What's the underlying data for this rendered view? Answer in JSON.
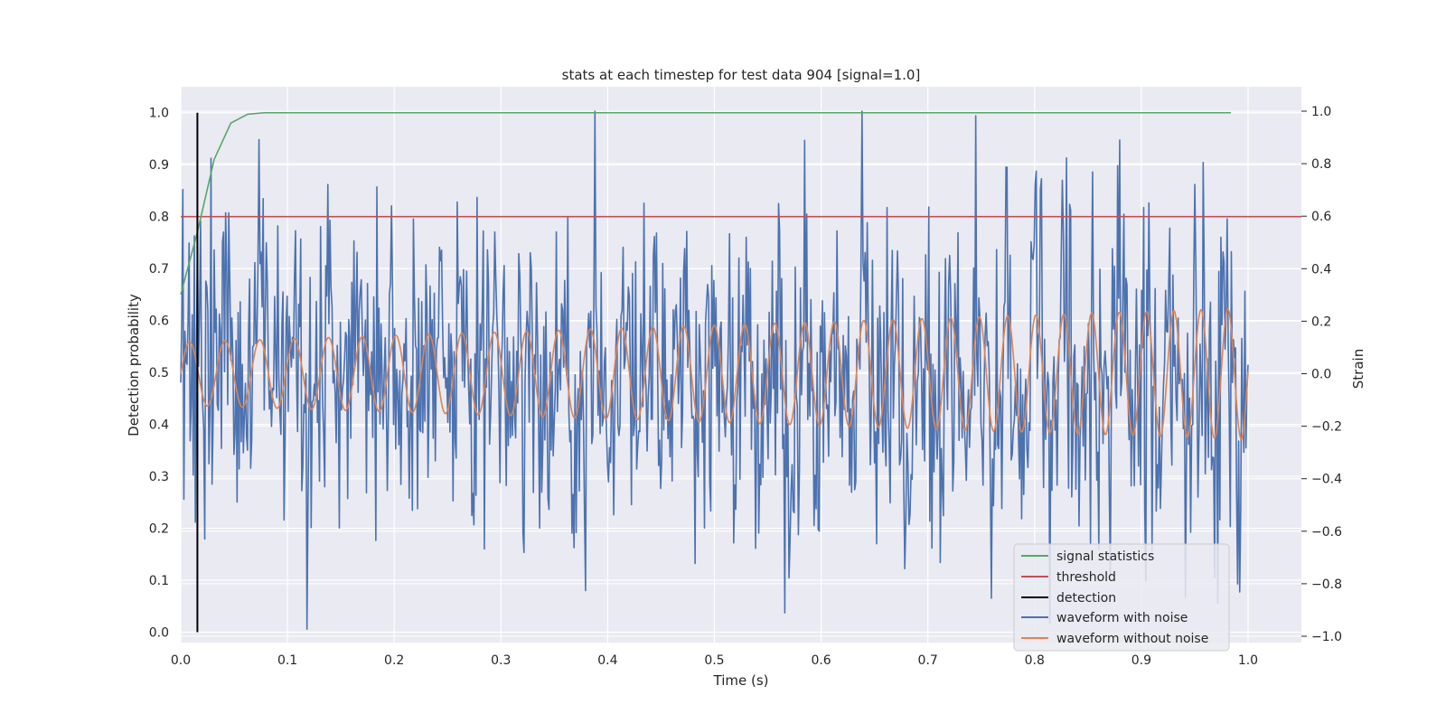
{
  "chart_data": {
    "type": "line",
    "title": "stats at each timestep for test data 904 [signal=1.0]",
    "xlabel": "Time (s)",
    "ylabel": "Detection probability",
    "y2label": "Strain",
    "xlim": [
      0.0,
      1.05
    ],
    "ylim": [
      -0.02,
      1.05
    ],
    "y2lim": [
      -1.0,
      1.0
    ],
    "xticks": [
      "0.0",
      "0.1",
      "0.2",
      "0.3",
      "0.4",
      "0.5",
      "0.6",
      "0.7",
      "0.8",
      "0.9",
      "1.0"
    ],
    "yticks": [
      "0.0",
      "0.1",
      "0.2",
      "0.3",
      "0.4",
      "0.5",
      "0.6",
      "0.7",
      "0.8",
      "0.9",
      "1.0"
    ],
    "y2ticks": [
      "−1.0",
      "−0.8",
      "−0.6",
      "−0.4",
      "−0.2",
      "0.0",
      "0.2",
      "0.4",
      "0.6",
      "0.8",
      "1.0"
    ],
    "grid": true,
    "legend_position": "lower right",
    "colors": {
      "plot_bg": "#eaeaf2",
      "grid": "#ffffff",
      "signal_statistics": "#55a868",
      "threshold": "#c44e52",
      "detection": "#000000",
      "waveform_with_noise": "#4c72b0",
      "waveform_without_noise": "#dd8452"
    },
    "series": [
      {
        "name": "signal statistics",
        "axis": "left",
        "x": [
          0.0,
          0.0156,
          0.0313,
          0.0469,
          0.0625,
          0.0781,
          0.1,
          0.2,
          0.4,
          0.6,
          0.8,
          0.984
        ],
        "y": [
          0.65,
          0.77,
          0.91,
          0.98,
          0.997,
          1.0,
          1.0,
          1.0,
          1.0,
          1.0,
          1.0,
          1.0
        ]
      },
      {
        "name": "threshold",
        "axis": "left",
        "x": [
          0.0,
          1.05
        ],
        "y": [
          0.8,
          0.8
        ]
      },
      {
        "name": "detection",
        "axis": "left",
        "x": [
          0.0156,
          0.0156
        ],
        "y": [
          0.0,
          1.0
        ]
      },
      {
        "name": "waveform with noise",
        "axis": "right",
        "samples": 1024,
        "t_range": [
          0.0,
          1.0
        ],
        "description_values": {
          "min": -0.99,
          "max": 1.0,
          "noise_std": 0.3
        }
      },
      {
        "name": "waveform without noise",
        "axis": "right",
        "samples": 1024,
        "t_range": [
          0.0,
          1.0
        ],
        "amplitude_start": 0.12,
        "amplitude_end": 0.25,
        "freq_start_hz": 30,
        "freq_end_hz": 40
      }
    ],
    "legend": [
      "signal statistics",
      "threshold",
      "detection",
      "waveform with noise",
      "waveform without noise"
    ]
  }
}
